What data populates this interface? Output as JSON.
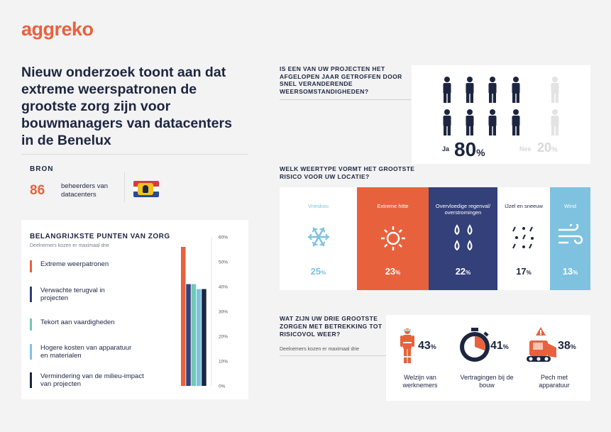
{
  "brand": {
    "logo": "aggreko",
    "accent": "#e8613d",
    "navy": "#1d2640"
  },
  "headline": "Nieuw onderzoek toont aan dat extreme weerspatronen de grootste zorg zijn voor bouwmanagers van datacenters in de Benelux",
  "source": {
    "label": "BRON",
    "count": "86",
    "description": "beheerders van datacenters",
    "flag_icon": "benelux-flag-icon"
  },
  "question1": {
    "text": "IS EEN VAN UW PROJECTEN HET AFGELOPEN JAAR GETROFFEN DOOR SNEL VERANDERENDE WEERSOMSTANDIGHEDEN?",
    "yes_label": "Ja",
    "yes_value": "80",
    "no_label": "Nee",
    "no_value": "20",
    "unit": "%"
  },
  "question2": {
    "text": "WELK WEERTYPE VORMT HET GROOTSTE RISICO VOOR UW LOCATIE?"
  },
  "question3": {
    "text": "WAT ZIJN UW DRIE GROOTSTE ZORGEN MET BETREKKING TOT RISICOVOL WEER?",
    "subtitle": "Deelnemers kozen er maximaal drie",
    "items": [
      {
        "value": "43",
        "unit": "%",
        "label": "Welzijn van werknemers",
        "icon": "worker-icon"
      },
      {
        "value": "41",
        "unit": "%",
        "label": "Vertragingen bij de bouw",
        "icon": "stopwatch-icon"
      },
      {
        "value": "38",
        "unit": "%",
        "label": "Pech met apparatuur",
        "icon": "excavator-warning-icon"
      }
    ]
  },
  "concerns_legend": [
    {
      "label": "Extreme weerpatronen",
      "color": "#e8613d"
    },
    {
      "label": "Verwachte terugval in projecten",
      "color": "#33407a"
    },
    {
      "label": "Tekort aan vaardigheden",
      "color": "#6fc9b4"
    },
    {
      "label": "Hogere kosten van apparatuur en materialen",
      "color": "#7ec2e0"
    },
    {
      "label": "Vermindering van de milieu-impact van projecten",
      "color": "#1d2640"
    }
  ],
  "chart_data": [
    {
      "type": "bar",
      "title": "BELANGRIJKSTE PUNTEN VAN ZORG",
      "subtitle": "Deelnemers kozen er maximaal drie",
      "categories": [
        "Extreme weerpatronen",
        "Verwachte terugval in projecten",
        "Tekort aan vaardigheden",
        "Hogere kosten van apparatuur en materialen",
        "Vermindering van de milieu-impact van projecten"
      ],
      "values": [
        56,
        41,
        41,
        39,
        39
      ],
      "colors": [
        "#e8613d",
        "#33407a",
        "#6fc9b4",
        "#7ec2e0",
        "#1d2640"
      ],
      "yticks": [
        "0%",
        "10%",
        "20%",
        "30%",
        "40%",
        "50%",
        "60%"
      ],
      "ylim": [
        0,
        60
      ],
      "grid": false
    },
    {
      "type": "bar",
      "title": "WELK WEERTYPE VORMT HET GROOTSTE RISICO VOOR UW LOCATIE?",
      "categories": [
        "Vrieskou",
        "Extreme hitte",
        "Overvloedige regenval/ overstromingen",
        "IJzel en sneeuw",
        "Wind"
      ],
      "values": [
        25,
        23,
        22,
        17,
        13
      ],
      "unit": "%",
      "panel_colors": [
        "#ffffff",
        "#e8613d",
        "#33407a",
        "#ffffff",
        "#7ec2e0"
      ],
      "text_colors": [
        "#7ec2e0",
        "#ffffff",
        "#ffffff",
        "#1d2640",
        "#ffffff"
      ],
      "icons": [
        "snowflake-icon",
        "sun-icon",
        "raindrops-icon",
        "hail-icon",
        "wind-icon"
      ]
    }
  ]
}
